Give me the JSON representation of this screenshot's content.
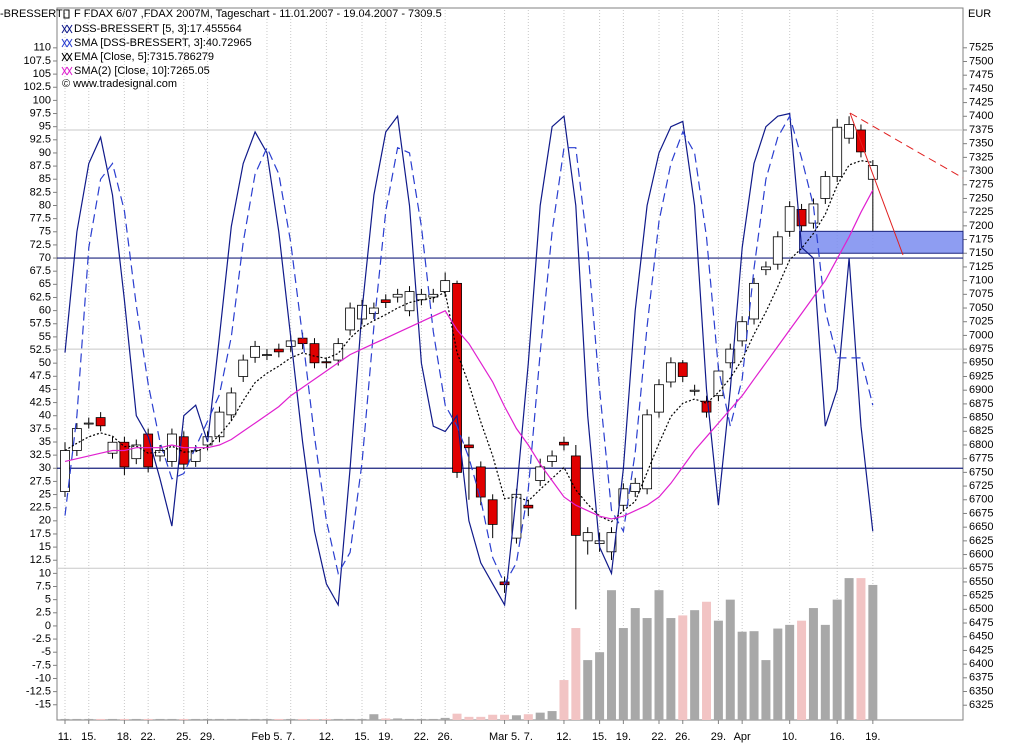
{
  "chart_data": {
    "type": "candlestick",
    "title": "F FDAX 6/07 ,FDAX 2007M, Tageschart - 11.01.2007 - 19.04.2007 - 7309.5",
    "y_label": "-BRESSERT",
    "y2_label": "EUR",
    "copyright": "© www.tradesignal.com",
    "categories": [
      "11.",
      null,
      "15.",
      null,
      null,
      "18.",
      null,
      "22.",
      null,
      null,
      "25.",
      null,
      "29.",
      null,
      null,
      null,
      null,
      "Feb 5.",
      null,
      "7.",
      null,
      null,
      "12.",
      null,
      null,
      "15.",
      null,
      "19.",
      null,
      null,
      "22.",
      null,
      "26.",
      null,
      null,
      null,
      null,
      "Mar 5.",
      null,
      "7.",
      null,
      null,
      "12.",
      null,
      null,
      "15.",
      null,
      "19.",
      null,
      null,
      "22.",
      null,
      "26.",
      null,
      null,
      "29.",
      null,
      "Apr",
      null,
      null,
      null,
      "10.",
      null,
      null,
      null,
      "16.",
      null,
      null,
      "19."
    ],
    "ohlc": {
      "up_color": "#ffffff",
      "down_color": "#e00000",
      "open": [
        6715,
        6790,
        6840,
        6850,
        6785,
        6805,
        6775,
        6820,
        6780,
        6770,
        6815,
        6770,
        6800,
        6815,
        6855,
        6925,
        6960,
        6965,
        6975,
        6980,
        6995,
        6985,
        6952,
        6955,
        7010,
        7030,
        7040,
        7065,
        7070,
        7045,
        7065,
        7070,
        7080,
        7095,
        6800,
        6760,
        6700,
        6550,
        6630,
        6690,
        6735,
        6770,
        6805,
        6780,
        6625,
        6620,
        6605,
        6690,
        6715,
        6720,
        6860,
        6915,
        6950,
        6898,
        6880,
        6890,
        6950,
        6990,
        7030,
        7120,
        7130,
        7190,
        7230,
        7205,
        7250,
        7290,
        7360,
        7375,
        7285
      ],
      "high": [
        6805,
        6840,
        6850,
        6860,
        6815,
        6815,
        6810,
        6830,
        6800,
        6830,
        6825,
        6800,
        6825,
        6870,
        6905,
        6965,
        6990,
        6975,
        6985,
        7000,
        7005,
        6995,
        6960,
        6995,
        7060,
        7065,
        7060,
        7075,
        7085,
        7090,
        7085,
        7085,
        7115,
        7100,
        6815,
        6770,
        6710,
        6560,
        6720,
        6700,
        6775,
        6790,
        6815,
        6800,
        6650,
        6640,
        6650,
        6730,
        6740,
        6865,
        6920,
        6960,
        6955,
        6910,
        6890,
        6945,
        6985,
        7035,
        7105,
        7135,
        7190,
        7245,
        7240,
        7250,
        7300,
        7395,
        7400,
        7385,
        7320
      ],
      "low": [
        6705,
        6780,
        6830,
        6825,
        6775,
        6745,
        6765,
        6750,
        6770,
        6760,
        6755,
        6760,
        6790,
        6805,
        6845,
        6915,
        6950,
        6955,
        6960,
        6970,
        6975,
        6940,
        6940,
        6945,
        7000,
        7020,
        7030,
        7050,
        7060,
        7035,
        7055,
        7060,
        7070,
        6740,
        6700,
        6690,
        6630,
        6530,
        6620,
        6670,
        6725,
        6760,
        6790,
        6500,
        6600,
        6605,
        6590,
        6680,
        6705,
        6710,
        6850,
        6905,
        6915,
        6890,
        6850,
        6880,
        6940,
        6980,
        7020,
        7110,
        7120,
        7180,
        7190,
        7195,
        7240,
        7280,
        7350,
        7325,
        7190
      ],
      "close": [
        6790,
        6830,
        6840,
        6835,
        6805,
        6760,
        6800,
        6760,
        6790,
        6820,
        6765,
        6790,
        6815,
        6860,
        6895,
        6955,
        6980,
        6965,
        6970,
        6990,
        6985,
        6950,
        6950,
        6985,
        7050,
        7055,
        7050,
        7060,
        7075,
        7080,
        7075,
        7075,
        7100,
        6750,
        6795,
        6705,
        6655,
        6545,
        6710,
        6685,
        6760,
        6780,
        6800,
        6635,
        6640,
        6625,
        6640,
        6720,
        6730,
        6855,
        6910,
        6950,
        6925,
        6900,
        6860,
        6935,
        6975,
        7025,
        7095,
        7125,
        7180,
        7235,
        7200,
        7240,
        7290,
        7380,
        7385,
        7335,
        7310
      ]
    },
    "series": [
      {
        "name": "DSS-BRESSERT [5, 3]:17.455564",
        "color": "#101a8a",
        "axis": "y",
        "dash": false,
        "values": [
          52,
          75,
          88,
          93,
          82,
          62,
          40,
          36,
          28,
          19,
          40,
          42,
          35,
          55,
          76,
          88,
          94,
          90,
          75,
          55,
          35,
          18,
          8,
          4,
          30,
          60,
          82,
          94,
          97,
          80,
          50,
          38,
          37,
          40,
          20,
          12,
          8,
          4,
          25,
          50,
          80,
          95,
          97,
          80,
          40,
          15,
          10,
          30,
          60,
          80,
          90,
          95,
          96,
          80,
          45,
          23,
          45,
          72,
          88,
          95,
          97,
          97.5,
          72,
          70,
          38,
          45,
          70,
          38,
          18
        ]
      },
      {
        "name": "SMA [DSS-BRESSERT, 3]:40.72965",
        "color": "#2a3ed0",
        "axis": "y",
        "dash": true,
        "values": [
          21,
          40,
          72,
          85,
          88,
          79,
          61,
          46,
          35,
          28,
          29,
          34,
          39,
          44,
          55,
          73,
          86,
          91,
          86,
          73,
          55,
          36,
          20,
          10,
          14,
          31,
          57,
          79,
          91,
          90,
          76,
          56,
          42,
          38,
          32,
          24,
          13,
          8,
          12,
          26,
          52,
          75,
          91,
          91,
          72,
          45,
          22,
          18,
          33,
          57,
          77,
          88,
          94,
          90,
          74,
          49,
          38,
          47,
          68,
          85,
          93,
          97,
          89,
          80,
          60,
          51,
          51,
          51,
          42
        ]
      },
      {
        "name": "EMA [Close, 5]:7315.786279",
        "color": "#000000",
        "axis": "y2",
        "dash": true,
        "values": [
          6790,
          6803,
          6815,
          6822,
          6816,
          6797,
          6798,
          6785,
          6787,
          6798,
          6787,
          6788,
          6797,
          6818,
          6844,
          6881,
          6914,
          6931,
          6944,
          6959,
          6968,
          6962,
          6958,
          6967,
          6995,
          7015,
          7027,
          7038,
          7050,
          7060,
          7065,
          7068,
          7079,
          6969,
          6911,
          6842,
          6780,
          6702,
          6705,
          6698,
          6719,
          6739,
          6759,
          6718,
          6692,
          6670,
          6660,
          6680,
          6697,
          6750,
          6803,
          6852,
          6876,
          6884,
          6876,
          6896,
          6922,
          6956,
          7002,
          7043,
          7089,
          7138,
          7159,
          7186,
          7221,
          7274,
          7311,
          7319,
          7316
        ]
      },
      {
        "name": "SMA(2) [Close, 10]:7265.05",
        "color": "#e020d0",
        "axis": "y2",
        "dash": false,
        "values": [
          6770,
          6775,
          6780,
          6785,
          6790,
          6790,
          6795,
          6795,
          6795,
          6800,
          6795,
          6795,
          6795,
          6800,
          6810,
          6825,
          6840,
          6855,
          6870,
          6890,
          6905,
          6920,
          6935,
          6950,
          6965,
          6975,
          6985,
          6995,
          7005,
          7015,
          7025,
          7035,
          7045,
          7010,
          6985,
          6950,
          6915,
          6870,
          6830,
          6800,
          6765,
          6735,
          6705,
          6690,
          6680,
          6670,
          6665,
          6670,
          6680,
          6690,
          6705,
          6730,
          6760,
          6790,
          6815,
          6840,
          6865,
          6890,
          6920,
          6950,
          6980,
          7010,
          7040,
          7070,
          7100,
          7140,
          7180,
          7225,
          7265
        ]
      }
    ],
    "volume": {
      "up_color": "#a8a8a8",
      "down_color": "#f2c4c4",
      "values": [
        -17.7,
        -17.7,
        -17.7,
        -17.7,
        -17.7,
        -17.7,
        -17.7,
        -17.7,
        -17.7,
        -17.7,
        -17.7,
        -17.7,
        -17.7,
        -17.7,
        -17.7,
        -17.7,
        -17.7,
        -17.7,
        -17.7,
        -17.7,
        -17.7,
        -17.7,
        -17.7,
        -17.7,
        -17.7,
        -17.7,
        -16.8,
        -17.6,
        -17.6,
        -17.7,
        -17.7,
        -17.7,
        -17.5,
        -16.7,
        -17.3,
        -17.3,
        -16.9,
        -16.9,
        -17.0,
        -16.8,
        -16.5,
        -16.2,
        -10.3,
        -0.4,
        -6.5,
        -5,
        6.8,
        -0.4,
        3.4,
        1.5,
        6.8,
        1.5,
        2,
        3,
        4.6,
        1,
        5,
        -1.1,
        -1,
        -6.5,
        -0.5,
        0.2,
        1,
        3.4,
        0.2,
        5,
        9.1,
        9.1,
        7.8
      ]
    },
    "levels": [
      30,
      70
    ],
    "level_color": "#1a237e",
    "y2grid": [
      6575,
      6975,
      7375
    ],
    "zone": {
      "y2": [
        7150,
        7190
      ],
      "color": "#7a8cf0"
    },
    "ylim": [
      -17.9,
      117.2
    ],
    "yticks": [
      -15,
      -12.5,
      -10,
      -7.5,
      -5,
      -2.5,
      0,
      2.5,
      5,
      7.5,
      10,
      12.5,
      15,
      17.5,
      20,
      22.5,
      25,
      27.5,
      30,
      32.5,
      35,
      37.5,
      40,
      42.5,
      45,
      47.5,
      50,
      52.5,
      55,
      57.5,
      60,
      62.5,
      65,
      67.5,
      70,
      72.5,
      75,
      77.5,
      80,
      82.5,
      85,
      87.5,
      90,
      92.5,
      95,
      97.5,
      100,
      102.5,
      105,
      107.5,
      110
    ],
    "y2lim": [
      6298,
      7594
    ],
    "y2ticks": [
      6325,
      6350,
      6375,
      6400,
      6425,
      6450,
      6475,
      6500,
      6525,
      6550,
      6575,
      6600,
      6625,
      6650,
      6675,
      6700,
      6725,
      6750,
      6775,
      6800,
      6825,
      6850,
      6875,
      6900,
      6925,
      6950,
      6975,
      7000,
      7025,
      7050,
      7075,
      7100,
      7125,
      7150,
      7175,
      7200,
      7225,
      7250,
      7275,
      7300,
      7325,
      7350,
      7375,
      7400,
      7425,
      7450,
      7475,
      7500,
      7525
    ]
  }
}
